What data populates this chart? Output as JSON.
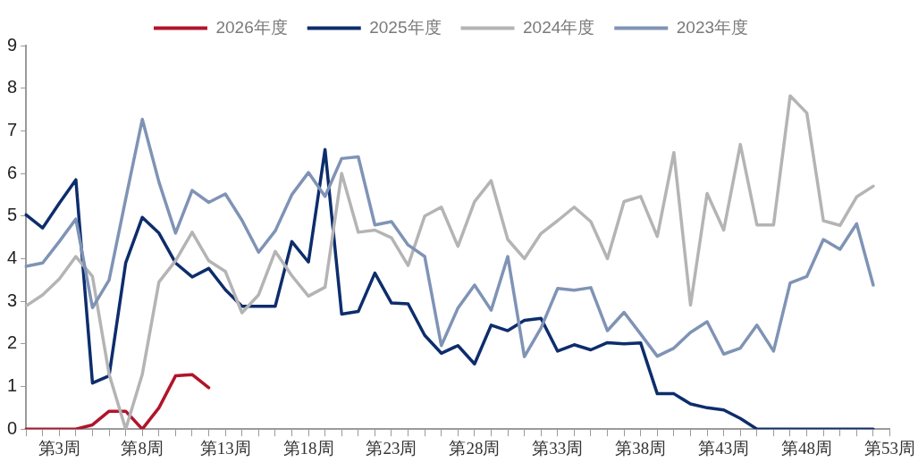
{
  "chart_data": {
    "type": "line",
    "categories": [
      null,
      null,
      "第3周",
      null,
      null,
      null,
      null,
      "第8周",
      null,
      null,
      null,
      null,
      "第13周",
      null,
      null,
      null,
      null,
      "第18周",
      null,
      null,
      null,
      null,
      "第23周",
      null,
      null,
      null,
      null,
      "第28周",
      null,
      null,
      null,
      null,
      "第33周",
      null,
      null,
      null,
      null,
      "第38周",
      null,
      null,
      null,
      null,
      "第43周",
      null,
      null,
      null,
      null,
      "第48周",
      null,
      null,
      null,
      null,
      "第53周"
    ],
    "ylim": [
      0,
      9
    ],
    "yticks": [
      0,
      1,
      2,
      3,
      4,
      5,
      6,
      7,
      8,
      9
    ],
    "grid": false,
    "legend": "top",
    "marker": "none",
    "line_style": "solid",
    "series": [
      {
        "name": "2026年度",
        "color": "#b0152a",
        "values": [
          0,
          0,
          0,
          0,
          0.1,
          0.42,
          0.42,
          0,
          0.5,
          1.25,
          1.28,
          0.97,
          null,
          null,
          null,
          null,
          null,
          null,
          null,
          null,
          null,
          null,
          null,
          null,
          null,
          null,
          null,
          null,
          null,
          null,
          null,
          null,
          null,
          null,
          null,
          null,
          null,
          null,
          null,
          null,
          null,
          null,
          null,
          null,
          null,
          null,
          null,
          null,
          null,
          null,
          null,
          null,
          null
        ]
      },
      {
        "name": "2025年度",
        "color": "#0d2d6c",
        "values": [
          5.03,
          4.72,
          5.3,
          5.85,
          1.08,
          1.25,
          3.9,
          4.97,
          4.6,
          3.9,
          3.57,
          3.77,
          3.27,
          2.88,
          2.88,
          2.88,
          4.4,
          3.92,
          6.56,
          2.7,
          2.76,
          3.66,
          2.96,
          2.94,
          2.2,
          1.78,
          1.96,
          1.53,
          2.44,
          2.31,
          2.55,
          2.6,
          1.83,
          1.98,
          1.86,
          2.03,
          2.0,
          2.02,
          0.83,
          0.83,
          0.59,
          0.5,
          0.45,
          0.25,
          0,
          0,
          0,
          0,
          0,
          0,
          0,
          0,
          null
        ]
      },
      {
        "name": "2024年度",
        "color": "#b4b4b4",
        "values": [
          2.89,
          3.15,
          3.52,
          4.05,
          3.58,
          1.29,
          0,
          1.29,
          3.45,
          3.95,
          4.62,
          3.95,
          3.7,
          2.73,
          3.15,
          4.17,
          3.6,
          3.12,
          3.33,
          6.0,
          4.62,
          4.67,
          4.49,
          3.84,
          5.0,
          5.21,
          4.29,
          5.34,
          5.83,
          4.45,
          4.0,
          4.59,
          4.89,
          5.21,
          4.87,
          4.0,
          5.34,
          5.46,
          4.52,
          6.49,
          2.91,
          5.53,
          4.67,
          6.68,
          4.79,
          4.79,
          7.82,
          7.42,
          4.89,
          4.78,
          5.45,
          5.7,
          null
        ]
      },
      {
        "name": "2023年度",
        "color": "#7f93b5",
        "values": [
          3.82,
          3.9,
          4.4,
          4.93,
          2.85,
          3.5,
          5.4,
          7.27,
          5.8,
          4.6,
          5.6,
          5.32,
          5.52,
          4.9,
          4.15,
          4.65,
          5.5,
          6.02,
          5.46,
          6.35,
          6.39,
          4.79,
          4.87,
          4.32,
          4.05,
          1.96,
          2.84,
          3.38,
          2.79,
          4.05,
          1.7,
          2.37,
          3.3,
          3.26,
          3.32,
          2.31,
          2.74,
          2.23,
          1.71,
          1.9,
          2.27,
          2.52,
          1.76,
          1.9,
          2.44,
          1.83,
          3.43,
          3.58,
          4.45,
          4.22,
          4.82,
          3.38,
          null
        ]
      }
    ]
  }
}
